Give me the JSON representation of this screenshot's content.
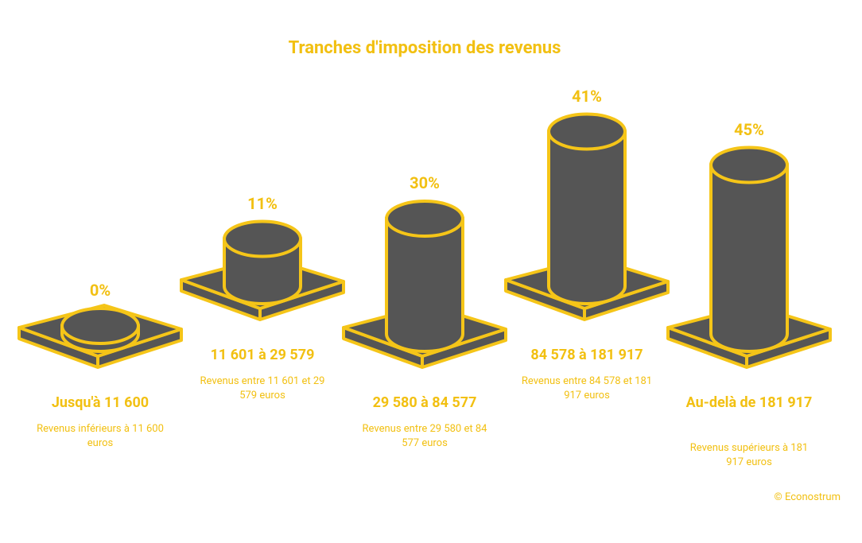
{
  "chart_data": {
    "type": "bar",
    "title": "Tranches d'imposition des revenus",
    "categories": [
      "Jusqu'à 11 600",
      "11 601 à 29 579",
      "29 580 à 84 577",
      "84 578 à 181 917",
      "Au-delà de 181 917"
    ],
    "descriptions": [
      "Revenus inférieurs à 11 600 euros",
      "Revenus entre 11 601 et 29 579 euros",
      "Revenus entre 29 580 et 84 577 euros",
      "Revenus entre 84 578 et 181 917 euros",
      "Revenus supérieurs à 181 917 euros"
    ],
    "values": [
      0,
      11,
      30,
      41,
      45
    ],
    "value_labels": [
      "0%",
      "11%",
      "30%",
      "41%",
      "45%"
    ],
    "color": "#555555",
    "outline_color": "#f5c518",
    "credit": "© Econostrum"
  }
}
